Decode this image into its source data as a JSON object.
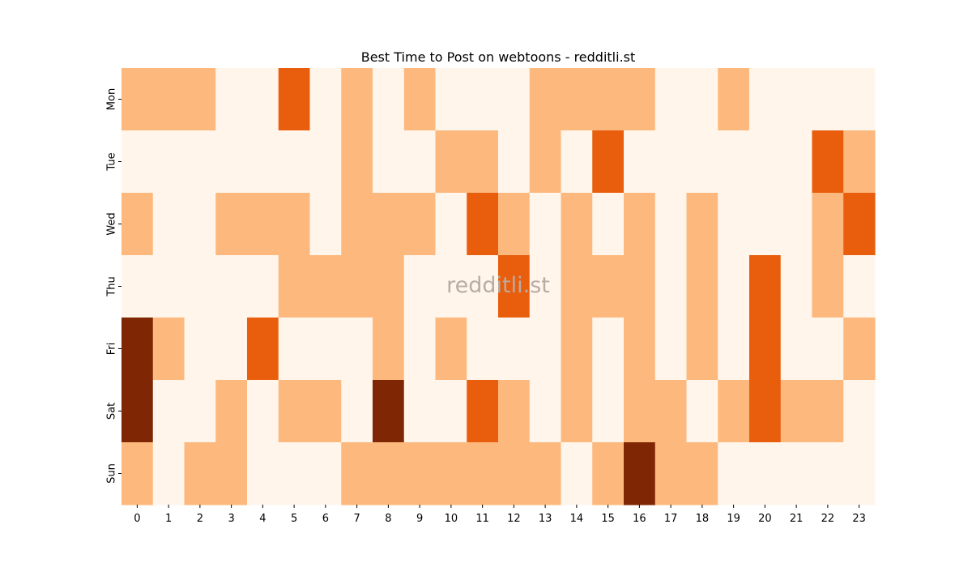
{
  "chart_data": {
    "type": "heatmap",
    "title": "Best Time to Post on webtoons - redditli.st",
    "xlabel": "",
    "ylabel": "",
    "x_categories": [
      "0",
      "1",
      "2",
      "3",
      "4",
      "5",
      "6",
      "7",
      "8",
      "9",
      "10",
      "11",
      "12",
      "13",
      "14",
      "15",
      "16",
      "17",
      "18",
      "19",
      "20",
      "21",
      "22",
      "23"
    ],
    "y_categories": [
      "Mon",
      "Tue",
      "Wed",
      "Thu",
      "Fri",
      "Sat",
      "Sun"
    ],
    "values": [
      [
        1,
        1,
        1,
        0,
        0,
        2,
        0,
        1,
        0,
        1,
        0,
        0,
        0,
        1,
        1,
        1,
        1,
        0,
        0,
        1,
        0,
        0,
        0,
        0
      ],
      [
        0,
        0,
        0,
        0,
        0,
        0,
        0,
        1,
        0,
        0,
        1,
        1,
        0,
        1,
        0,
        2,
        0,
        0,
        0,
        0,
        0,
        0,
        2,
        1
      ],
      [
        1,
        0,
        0,
        1,
        1,
        1,
        0,
        1,
        1,
        1,
        0,
        2,
        1,
        0,
        1,
        0,
        1,
        0,
        1,
        0,
        0,
        0,
        1,
        2
      ],
      [
        0,
        0,
        0,
        0,
        0,
        1,
        1,
        1,
        1,
        0,
        0,
        0,
        2,
        0,
        1,
        1,
        1,
        0,
        1,
        0,
        2,
        0,
        1,
        0
      ],
      [
        3,
        1,
        0,
        0,
        2,
        0,
        0,
        0,
        1,
        0,
        1,
        0,
        0,
        0,
        1,
        0,
        1,
        0,
        1,
        0,
        2,
        0,
        0,
        1
      ],
      [
        3,
        0,
        0,
        1,
        0,
        1,
        1,
        0,
        3,
        0,
        0,
        2,
        1,
        0,
        1,
        0,
        1,
        1,
        0,
        1,
        2,
        1,
        1,
        0
      ],
      [
        1,
        0,
        1,
        1,
        0,
        0,
        0,
        1,
        1,
        1,
        1,
        1,
        1,
        1,
        0,
        1,
        3,
        1,
        1,
        0,
        0,
        0,
        0,
        0
      ]
    ],
    "colors": [
      "#fff5eb",
      "#fdb97d",
      "#e95e0d",
      "#7f2704"
    ],
    "colorbar": false,
    "watermark": "redditli.st"
  }
}
